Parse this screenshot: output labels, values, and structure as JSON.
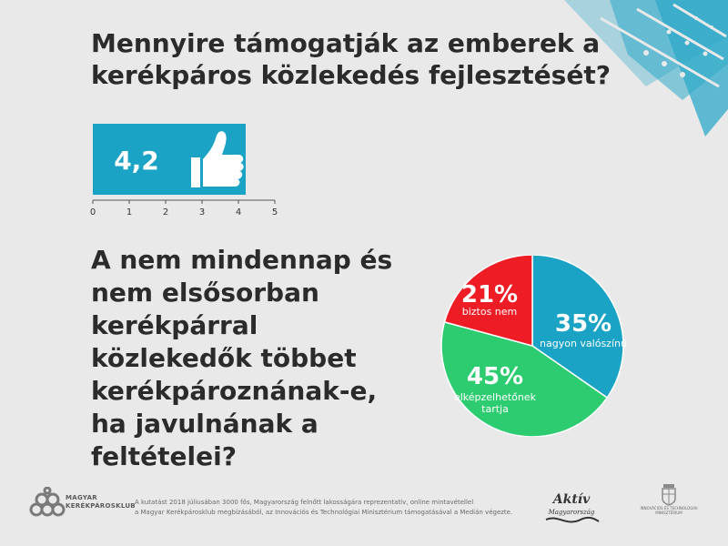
{
  "question1": {
    "line1": "Mennyire támogatják az emberek a",
    "line2": "kerékpáros közlekedés fejlesztését?"
  },
  "rating": {
    "value": 4.2,
    "value_label": "4,2",
    "axis_min": 0,
    "axis_max": 5,
    "ticks": [
      "0",
      "1",
      "2",
      "3",
      "4",
      "5"
    ],
    "icon": "thumbs-up-icon",
    "color": "#1ba3c6"
  },
  "question2": {
    "lines": [
      "A nem mindennap és",
      "nem elsősorban",
      "kerékpárral",
      "közlekedők többet",
      "kerékpároznának-e,",
      "ha javulnának a",
      "feltételei?"
    ]
  },
  "chart_data": {
    "type": "pie",
    "slices": [
      {
        "value": 35,
        "pct_label": "35%",
        "label": "nagyon valószínű",
        "color": "#1ba3c6"
      },
      {
        "value": 45,
        "pct_label": "45%",
        "label_lines": [
          "elképzelhetőnek",
          "tartja"
        ],
        "color": "#2ecc71"
      },
      {
        "value": 21,
        "pct_label": "21%",
        "label": "biztos nem",
        "color": "#ee1c25"
      }
    ]
  },
  "footer": {
    "logo_line1": "MAGYAR",
    "logo_line2": "KERÉKPÁROSKLUB",
    "note_line1": "A kutatást 2018 júliusában 3000 fős, Magyarország felnőtt lakosságára reprezentatív, online mintavétellel",
    "note_line2": "a Magyar Kerékpárosklub megbízásából, az Innovációs és Technológiai Minisztérium támogatásával a Medián végezte.",
    "aktiv_line1": "Aktív",
    "aktiv_line2": "Magyarország",
    "ministry_line1": "INNOVÁCIÓS ÉS TECHNOLÓGIAI",
    "ministry_line2": "MINISZTÉRIUM"
  },
  "colors": {
    "background": "#e9e9e9",
    "text": "#2b2b2b",
    "accent": "#1ba3c6"
  }
}
